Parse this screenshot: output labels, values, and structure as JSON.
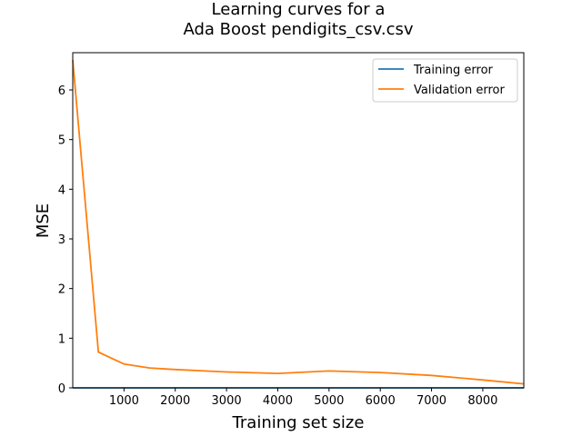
{
  "chart_data": {
    "type": "line",
    "title_line1": "Learning curves for a",
    "title_line2": "Ada Boost pendigits_csv.csv",
    "xlabel": "Training set size",
    "ylabel": "MSE",
    "xlim": [
      0,
      8800
    ],
    "ylim": [
      0,
      6.75
    ],
    "x_ticks": [
      1000,
      2000,
      3000,
      4000,
      5000,
      6000,
      7000,
      8000
    ],
    "y_ticks": [
      0,
      1,
      2,
      3,
      4,
      5,
      6
    ],
    "grid": false,
    "legend_position": "top-right",
    "series": [
      {
        "name": "Training error",
        "color": "#1f77b4",
        "x": [
          0,
          500,
          1000,
          1500,
          2000,
          3000,
          4000,
          5000,
          6000,
          7000,
          8000,
          8800
        ],
        "y": [
          0,
          0,
          0,
          0,
          0,
          0,
          0,
          0,
          0,
          0,
          0,
          0
        ]
      },
      {
        "name": "Validation error",
        "color": "#ff7f0e",
        "x": [
          0,
          500,
          1000,
          1500,
          2000,
          3000,
          4000,
          5000,
          6000,
          7000,
          8000,
          8800
        ],
        "y": [
          6.6,
          0.72,
          0.48,
          0.4,
          0.37,
          0.32,
          0.29,
          0.34,
          0.31,
          0.25,
          0.16,
          0.08
        ]
      }
    ]
  }
}
